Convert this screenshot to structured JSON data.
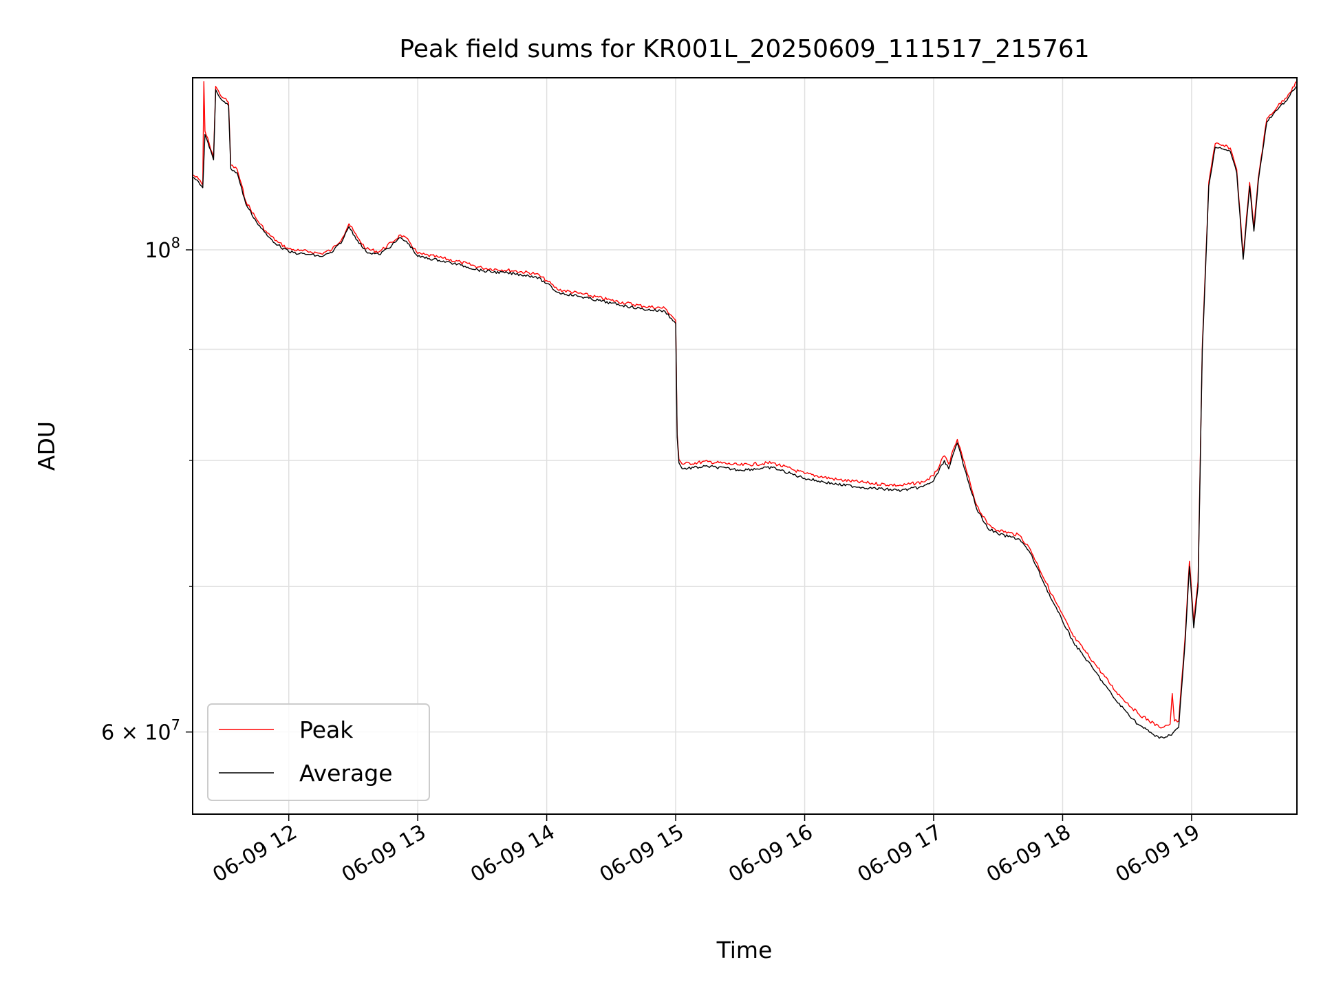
{
  "chart_data": {
    "type": "line",
    "title": "Peak field sums for KR001L_20250609_111517_215761",
    "xlabel": "Time",
    "ylabel": "ADU",
    "yscale": "log",
    "xlim": [
      "2025-06-09T11:15:17",
      "2025-06-09T19:49:00"
    ],
    "ylim": [
      55000000,
      120000000
    ],
    "grid": true,
    "legend_position": "lower-left",
    "x_ticks": [
      {
        "t": "2025-06-09T12:00:00",
        "label": "06-09 12"
      },
      {
        "t": "2025-06-09T13:00:00",
        "label": "06-09 13"
      },
      {
        "t": "2025-06-09T14:00:00",
        "label": "06-09 14"
      },
      {
        "t": "2025-06-09T15:00:00",
        "label": "06-09 15"
      },
      {
        "t": "2025-06-09T16:00:00",
        "label": "06-09 16"
      },
      {
        "t": "2025-06-09T17:00:00",
        "label": "06-09 17"
      },
      {
        "t": "2025-06-09T18:00:00",
        "label": "06-09 18"
      },
      {
        "t": "2025-06-09T19:00:00",
        "label": "06-09 19"
      }
    ],
    "y_major_ticks": [
      {
        "value": 60000000,
        "label_base": "6 × 10",
        "label_exp": "7"
      },
      {
        "value": 100000000,
        "label_base": "10",
        "label_exp": "8"
      }
    ],
    "y_minor_gridlines": [
      70000000,
      80000000,
      90000000
    ],
    "series": [
      {
        "name": "Average",
        "color": "#000000",
        "points": [
          [
            "2025-06-09T11:15:17",
            108000000
          ],
          [
            "2025-06-09T11:18:00",
            107500000
          ],
          [
            "2025-06-09T11:20:00",
            106800000
          ],
          [
            "2025-06-09T11:21:00",
            113000000
          ],
          [
            "2025-06-09T11:23:00",
            111500000
          ],
          [
            "2025-06-09T11:25:00",
            110000000
          ],
          [
            "2025-06-09T11:26:00",
            118500000
          ],
          [
            "2025-06-09T11:28:00",
            117500000
          ],
          [
            "2025-06-09T11:30:00",
            117000000
          ],
          [
            "2025-06-09T11:32:00",
            116500000
          ],
          [
            "2025-06-09T11:33:00",
            109000000
          ],
          [
            "2025-06-09T11:36:00",
            108500000
          ],
          [
            "2025-06-09T11:40:00",
            105000000
          ],
          [
            "2025-06-09T11:45:00",
            103000000
          ],
          [
            "2025-06-09T11:50:00",
            101500000
          ],
          [
            "2025-06-09T11:55:00",
            100500000
          ],
          [
            "2025-06-09T12:00:00",
            99800000
          ],
          [
            "2025-06-09T12:05:00",
            99600000
          ],
          [
            "2025-06-09T12:10:00",
            99500000
          ],
          [
            "2025-06-09T12:15:00",
            99300000
          ],
          [
            "2025-06-09T12:20:00",
            99700000
          ],
          [
            "2025-06-09T12:25:00",
            101000000
          ],
          [
            "2025-06-09T12:28:00",
            102500000
          ],
          [
            "2025-06-09T12:32:00",
            101000000
          ],
          [
            "2025-06-09T12:36:00",
            99800000
          ],
          [
            "2025-06-09T12:42:00",
            99500000
          ],
          [
            "2025-06-09T12:48:00",
            100500000
          ],
          [
            "2025-06-09T12:52:00",
            101300000
          ],
          [
            "2025-06-09T12:56:00",
            100600000
          ],
          [
            "2025-06-09T13:00:00",
            99300000
          ],
          [
            "2025-06-09T13:10:00",
            98900000
          ],
          [
            "2025-06-09T13:20:00",
            98400000
          ],
          [
            "2025-06-09T13:30:00",
            97800000
          ],
          [
            "2025-06-09T13:45:00",
            97500000
          ],
          [
            "2025-06-09T13:55:00",
            97200000
          ],
          [
            "2025-06-09T14:00:00",
            96500000
          ],
          [
            "2025-06-09T14:05:00",
            95600000
          ],
          [
            "2025-06-09T14:15:00",
            95200000
          ],
          [
            "2025-06-09T14:30:00",
            94500000
          ],
          [
            "2025-06-09T14:45:00",
            93900000
          ],
          [
            "2025-06-09T14:55:00",
            93700000
          ],
          [
            "2025-06-09T14:58:00",
            93000000
          ],
          [
            "2025-06-09T15:00:00",
            92500000
          ],
          [
            "2025-06-09T15:00:40",
            82000000
          ],
          [
            "2025-06-09T15:01:30",
            79800000
          ],
          [
            "2025-06-09T15:03:00",
            79300000
          ],
          [
            "2025-06-09T15:15:00",
            79500000
          ],
          [
            "2025-06-09T15:30:00",
            79200000
          ],
          [
            "2025-06-09T15:45:00",
            79400000
          ],
          [
            "2025-06-09T16:00:00",
            78500000
          ],
          [
            "2025-06-09T16:15:00",
            78000000
          ],
          [
            "2025-06-09T16:30:00",
            77700000
          ],
          [
            "2025-06-09T16:45:00",
            77500000
          ],
          [
            "2025-06-09T16:55:00",
            77800000
          ],
          [
            "2025-06-09T17:00:00",
            78300000
          ],
          [
            "2025-06-09T17:05:00",
            80000000
          ],
          [
            "2025-06-09T17:07:00",
            79300000
          ],
          [
            "2025-06-09T17:11:00",
            81500000
          ],
          [
            "2025-06-09T17:15:00",
            79000000
          ],
          [
            "2025-06-09T17:20:00",
            76000000
          ],
          [
            "2025-06-09T17:25:00",
            74500000
          ],
          [
            "2025-06-09T17:30:00",
            74000000
          ],
          [
            "2025-06-09T17:40:00",
            73600000
          ],
          [
            "2025-06-09T17:45:00",
            72500000
          ],
          [
            "2025-06-09T17:55:00",
            69000000
          ],
          [
            "2025-06-09T18:05:00",
            66000000
          ],
          [
            "2025-06-09T18:15:00",
            64000000
          ],
          [
            "2025-06-09T18:25:00",
            62000000
          ],
          [
            "2025-06-09T18:35:00",
            60500000
          ],
          [
            "2025-06-09T18:45:00",
            59600000
          ],
          [
            "2025-06-09T18:50:00",
            59800000
          ],
          [
            "2025-06-09T18:54:00",
            60300000
          ],
          [
            "2025-06-09T18:57:00",
            66000000
          ],
          [
            "2025-06-09T18:59:00",
            71500000
          ],
          [
            "2025-06-09T19:01:00",
            67000000
          ],
          [
            "2025-06-09T19:03:00",
            70000000
          ],
          [
            "2025-06-09T19:05:00",
            90000000
          ],
          [
            "2025-06-09T19:08:00",
            107000000
          ],
          [
            "2025-06-09T19:11:00",
            111500000
          ],
          [
            "2025-06-09T19:14:00",
            111300000
          ],
          [
            "2025-06-09T19:18:00",
            111000000
          ],
          [
            "2025-06-09T19:21:00",
            108500000
          ],
          [
            "2025-06-09T19:24:00",
            99000000
          ],
          [
            "2025-06-09T19:27:00",
            107000000
          ],
          [
            "2025-06-09T19:29:00",
            102000000
          ],
          [
            "2025-06-09T19:31:00",
            107500000
          ],
          [
            "2025-06-09T19:35:00",
            114500000
          ],
          [
            "2025-06-09T19:40:00",
            116000000
          ],
          [
            "2025-06-09T19:45:00",
            117500000
          ],
          [
            "2025-06-09T19:49:00",
            119000000
          ]
        ]
      },
      {
        "name": "Peak",
        "color": "#ff0000",
        "points": [
          [
            "2025-06-09T11:15:17",
            108300000
          ],
          [
            "2025-06-09T11:18:00",
            107800000
          ],
          [
            "2025-06-09T11:20:00",
            107100000
          ],
          [
            "2025-06-09T11:20:30",
            119500000
          ],
          [
            "2025-06-09T11:21:00",
            113400000
          ],
          [
            "2025-06-09T11:23:00",
            111900000
          ],
          [
            "2025-06-09T11:25:00",
            110400000
          ],
          [
            "2025-06-09T11:26:00",
            118900000
          ],
          [
            "2025-06-09T11:28:00",
            117900000
          ],
          [
            "2025-06-09T11:30:00",
            117400000
          ],
          [
            "2025-06-09T11:32:00",
            116900000
          ],
          [
            "2025-06-09T11:33:00",
            109400000
          ],
          [
            "2025-06-09T11:36:00",
            108900000
          ],
          [
            "2025-06-09T11:40:00",
            105300000
          ],
          [
            "2025-06-09T11:45:00",
            103300000
          ],
          [
            "2025-06-09T11:50:00",
            101800000
          ],
          [
            "2025-06-09T11:55:00",
            100800000
          ],
          [
            "2025-06-09T12:00:00",
            100100000
          ],
          [
            "2025-06-09T12:05:00",
            99900000
          ],
          [
            "2025-06-09T12:10:00",
            99800000
          ],
          [
            "2025-06-09T12:15:00",
            99600000
          ],
          [
            "2025-06-09T12:20:00",
            100000000
          ],
          [
            "2025-06-09T12:25:00",
            101300000
          ],
          [
            "2025-06-09T12:28:00",
            102800000
          ],
          [
            "2025-06-09T12:32:00",
            101300000
          ],
          [
            "2025-06-09T12:36:00",
            100100000
          ],
          [
            "2025-06-09T12:42:00",
            99800000
          ],
          [
            "2025-06-09T12:48:00",
            100800000
          ],
          [
            "2025-06-09T12:52:00",
            101600000
          ],
          [
            "2025-06-09T12:56:00",
            100900000
          ],
          [
            "2025-06-09T13:00:00",
            99600000
          ],
          [
            "2025-06-09T13:10:00",
            99200000
          ],
          [
            "2025-06-09T13:20:00",
            98700000
          ],
          [
            "2025-06-09T13:30:00",
            98100000
          ],
          [
            "2025-06-09T13:45:00",
            97800000
          ],
          [
            "2025-06-09T13:55:00",
            97500000
          ],
          [
            "2025-06-09T14:00:00",
            96800000
          ],
          [
            "2025-06-09T14:05:00",
            95900000
          ],
          [
            "2025-06-09T14:15:00",
            95500000
          ],
          [
            "2025-06-09T14:30:00",
            94800000
          ],
          [
            "2025-06-09T14:45:00",
            94200000
          ],
          [
            "2025-06-09T14:55:00",
            94000000
          ],
          [
            "2025-06-09T14:58:00",
            93300000
          ],
          [
            "2025-06-09T15:00:00",
            92800000
          ],
          [
            "2025-06-09T15:00:40",
            82300000
          ],
          [
            "2025-06-09T15:01:30",
            80100000
          ],
          [
            "2025-06-09T15:03:00",
            79700000
          ],
          [
            "2025-06-09T15:15:00",
            79900000
          ],
          [
            "2025-06-09T15:30:00",
            79600000
          ],
          [
            "2025-06-09T15:45:00",
            79800000
          ],
          [
            "2025-06-09T16:00:00",
            78900000
          ],
          [
            "2025-06-09T16:15:00",
            78400000
          ],
          [
            "2025-06-09T16:30:00",
            78100000
          ],
          [
            "2025-06-09T16:45:00",
            77900000
          ],
          [
            "2025-06-09T16:55:00",
            78200000
          ],
          [
            "2025-06-09T17:00:00",
            78700000
          ],
          [
            "2025-06-09T17:05:00",
            80400000
          ],
          [
            "2025-06-09T17:07:00",
            79700000
          ],
          [
            "2025-06-09T17:11:00",
            81800000
          ],
          [
            "2025-06-09T17:15:00",
            79300000
          ],
          [
            "2025-06-09T17:20:00",
            76300000
          ],
          [
            "2025-06-09T17:25:00",
            74800000
          ],
          [
            "2025-06-09T17:30:00",
            74300000
          ],
          [
            "2025-06-09T17:40:00",
            73900000
          ],
          [
            "2025-06-09T17:45:00",
            72800000
          ],
          [
            "2025-06-09T17:55:00",
            69400000
          ],
          [
            "2025-06-09T18:05:00",
            66400000
          ],
          [
            "2025-06-09T18:15:00",
            64500000
          ],
          [
            "2025-06-09T18:25:00",
            62600000
          ],
          [
            "2025-06-09T18:35:00",
            61200000
          ],
          [
            "2025-06-09T18:45:00",
            60300000
          ],
          [
            "2025-06-09T18:50:00",
            60500000
          ],
          [
            "2025-06-09T18:51:00",
            62500000
          ],
          [
            "2025-06-09T18:52:00",
            60700000
          ],
          [
            "2025-06-09T18:54:00",
            60700000
          ],
          [
            "2025-06-09T18:57:00",
            66400000
          ],
          [
            "2025-06-09T18:59:00",
            71900000
          ],
          [
            "2025-06-09T19:01:00",
            67400000
          ],
          [
            "2025-06-09T19:03:00",
            70400000
          ],
          [
            "2025-06-09T19:05:00",
            90400000
          ],
          [
            "2025-06-09T19:08:00",
            107400000
          ],
          [
            "2025-06-09T19:11:00",
            111900000
          ],
          [
            "2025-06-09T19:14:00",
            111700000
          ],
          [
            "2025-06-09T19:18:00",
            111400000
          ],
          [
            "2025-06-09T19:21:00",
            108900000
          ],
          [
            "2025-06-09T19:24:00",
            99400000
          ],
          [
            "2025-06-09T19:27:00",
            107400000
          ],
          [
            "2025-06-09T19:29:00",
            102400000
          ],
          [
            "2025-06-09T19:31:00",
            107900000
          ],
          [
            "2025-06-09T19:35:00",
            114900000
          ],
          [
            "2025-06-09T19:40:00",
            116400000
          ],
          [
            "2025-06-09T19:45:00",
            117900000
          ],
          [
            "2025-06-09T19:49:00",
            119500000
          ]
        ]
      }
    ],
    "legend": [
      {
        "label": "Peak",
        "color": "#ff0000"
      },
      {
        "label": "Average",
        "color": "#000000"
      }
    ]
  }
}
